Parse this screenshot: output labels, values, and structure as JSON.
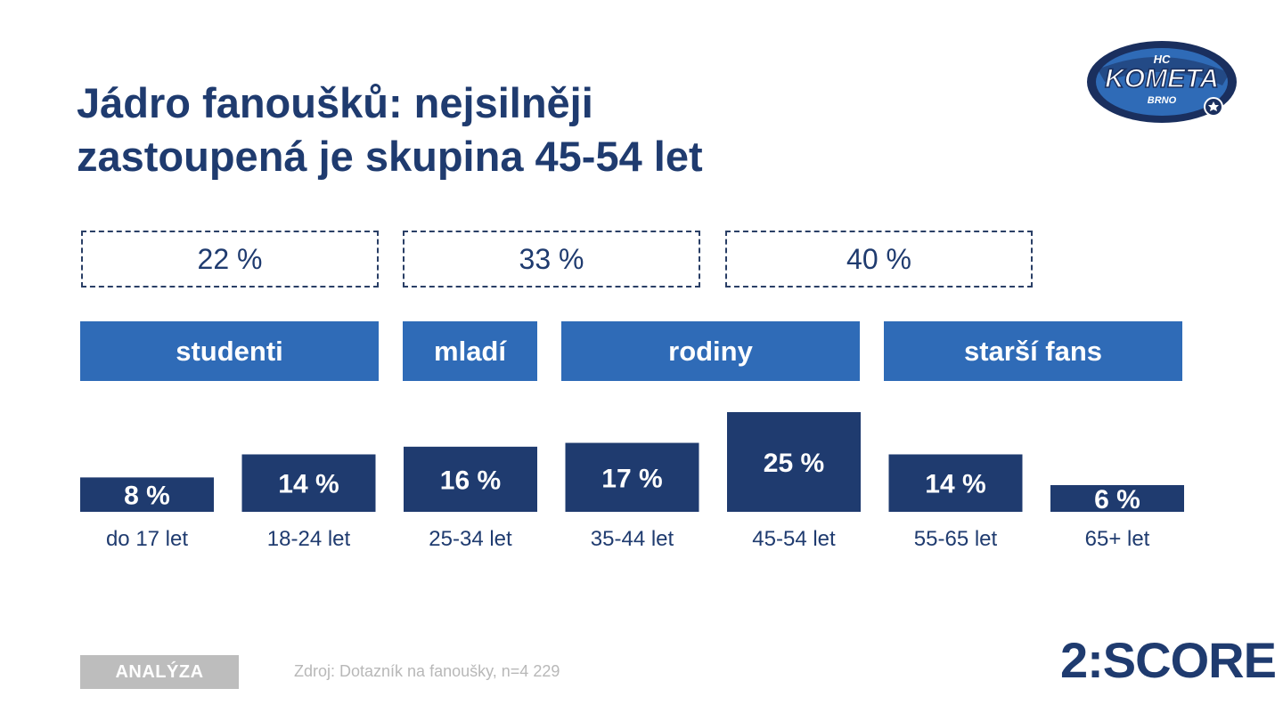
{
  "title": {
    "line1": "Jádro fanoušků: nejsilněji",
    "line2": "zastoupená je skupina 45-54 let"
  },
  "logo": {
    "text_top": "HC",
    "text_main": "KOMETA",
    "text_bottom": "BRNO",
    "icon": "hc-kometa-brno-logo"
  },
  "summary_boxes": [
    {
      "label": "22 %",
      "value": 22
    },
    {
      "label": "33 %",
      "value": 33
    },
    {
      "label": "40 %",
      "value": 40
    }
  ],
  "groups": [
    {
      "label": "studenti"
    },
    {
      "label": "mladí"
    },
    {
      "label": "rodiny"
    },
    {
      "label": "starší fans"
    }
  ],
  "chart_data": {
    "type": "bar",
    "title": "Jádro fanoušků: nejsilněji zastoupená je skupina 45-54 let",
    "xlabel": "",
    "ylabel": "",
    "ylim": [
      0,
      25
    ],
    "categories": [
      "do 17 let",
      "18-24 let",
      "25-34 let",
      "35-44 let",
      "45-54 let",
      "55-65 let",
      "65+ let"
    ],
    "values": [
      8,
      14,
      16,
      17,
      25,
      14,
      6
    ],
    "value_labels": [
      "8 %",
      "14 %",
      "16 %",
      "17 %",
      "25 %",
      "14 %",
      "6 %"
    ]
  },
  "footer": {
    "tag": "ANALÝZA",
    "source": "Zdroj: Dotazník na fanoušky, n=4 229",
    "brand": "2:SCORE"
  },
  "colors": {
    "navy": "#1f3b6f",
    "group_blue": "#2f6bb7",
    "tag_gray": "#bdbdbd"
  }
}
